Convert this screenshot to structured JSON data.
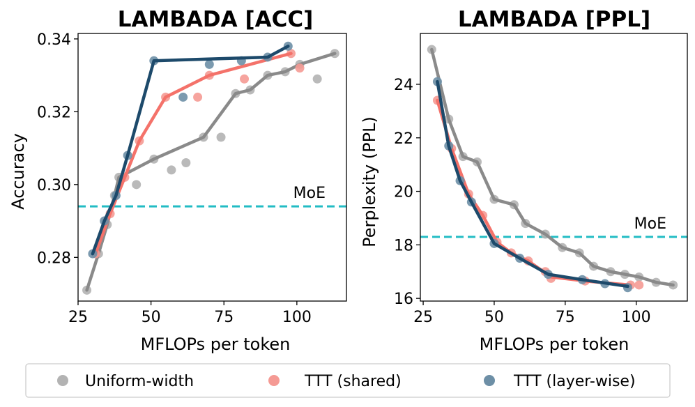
{
  "colors": {
    "uniform": "#8a8a8a",
    "shared": "#f4726a",
    "layerwise": "#1d4a6b",
    "moe": "#22bcc4"
  },
  "legend": {
    "items": [
      {
        "label": "Uniform-width",
        "color": "#b3b3b3"
      },
      {
        "label": "TTT (shared)",
        "color": "#f59a94"
      },
      {
        "label": "TTT (layer-wise)",
        "color": "#6d8fa6"
      }
    ]
  },
  "chart_data": [
    {
      "type": "line",
      "title": "LAMBADA [ACC]",
      "xlabel": "MFLOPs per token",
      "ylabel": "Accuracy",
      "xlim": [
        25,
        117
      ],
      "ylim": [
        0.268,
        0.3415
      ],
      "xticks": [
        25,
        50,
        75,
        100
      ],
      "yticks": [
        0.28,
        0.3,
        0.32,
        0.34
      ],
      "ytick_labels": [
        "0.28",
        "0.30",
        "0.32",
        "0.34"
      ],
      "hline": {
        "label": "MoE",
        "y": 0.294
      },
      "series": [
        {
          "name": "Uniform-width",
          "points": [
            [
              28,
              0.271
            ],
            [
              32,
              0.281
            ],
            [
              35,
              0.289
            ],
            [
              37.5,
              0.297
            ],
            [
              39,
              0.302
            ],
            [
              45,
              0.3
            ],
            [
              51,
              0.307
            ],
            [
              57,
              0.304
            ],
            [
              62,
              0.306
            ],
            [
              68,
              0.313
            ],
            [
              74,
              0.313
            ],
            [
              79,
              0.325
            ],
            [
              84,
              0.326
            ],
            [
              90,
              0.33
            ],
            [
              96,
              0.331
            ],
            [
              101,
              0.333
            ],
            [
              107,
              0.329
            ],
            [
              113,
              0.336
            ]
          ],
          "line": [
            [
              28,
              0.271
            ],
            [
              32,
              0.281
            ],
            [
              35,
              0.289
            ],
            [
              37.5,
              0.297
            ],
            [
              39,
              0.302
            ],
            [
              51,
              0.307
            ],
            [
              68,
              0.313
            ],
            [
              79,
              0.325
            ],
            [
              84,
              0.326
            ],
            [
              90,
              0.33
            ],
            [
              96,
              0.331
            ],
            [
              101,
              0.333
            ],
            [
              113,
              0.336
            ]
          ]
        },
        {
          "name": "TTT (shared)",
          "points": [
            [
              31,
              0.281
            ],
            [
              36,
              0.292
            ],
            [
              41,
              0.302
            ],
            [
              46,
              0.312
            ],
            [
              55,
              0.324
            ],
            [
              66,
              0.324
            ],
            [
              70,
              0.33
            ],
            [
              82,
              0.329
            ],
            [
              98,
              0.336
            ],
            [
              101,
              0.332
            ]
          ],
          "line": [
            [
              31,
              0.281
            ],
            [
              36,
              0.292
            ],
            [
              41,
              0.302
            ],
            [
              46,
              0.312
            ],
            [
              55,
              0.324
            ],
            [
              70,
              0.33
            ],
            [
              98,
              0.336
            ]
          ]
        },
        {
          "name": "TTT (layer-wise)",
          "points": [
            [
              30,
              0.281
            ],
            [
              34,
              0.29
            ],
            [
              38,
              0.297
            ],
            [
              42,
              0.308
            ],
            [
              51,
              0.334
            ],
            [
              61,
              0.324
            ],
            [
              70,
              0.333
            ],
            [
              81,
              0.334
            ],
            [
              90,
              0.335
            ],
            [
              97,
              0.338
            ]
          ],
          "line": [
            [
              30,
              0.281
            ],
            [
              34,
              0.29
            ],
            [
              38,
              0.297
            ],
            [
              42,
              0.308
            ],
            [
              51,
              0.334
            ],
            [
              90,
              0.335
            ],
            [
              97,
              0.338
            ]
          ]
        }
      ]
    },
    {
      "type": "line",
      "title": "LAMBADA [PPL]",
      "xlabel": "MFLOPs per token",
      "ylabel": "Perplexity (PPL)",
      "xlim": [
        24,
        118
      ],
      "ylim": [
        15.9,
        25.9
      ],
      "xticks": [
        25,
        50,
        75,
        100
      ],
      "yticks": [
        16,
        18,
        20,
        22,
        24
      ],
      "ytick_labels": [
        "16",
        "18",
        "20",
        "22",
        "24"
      ],
      "hline": {
        "label": "MoE",
        "y": 18.3
      },
      "series": [
        {
          "name": "Uniform-width",
          "points": [
            [
              28,
              25.3
            ],
            [
              34,
              22.7
            ],
            [
              39,
              21.3
            ],
            [
              44,
              21.1
            ],
            [
              50,
              19.7
            ],
            [
              57,
              19.5
            ],
            [
              61,
              18.8
            ],
            [
              68,
              18.4
            ],
            [
              74,
              17.9
            ],
            [
              80,
              17.7
            ],
            [
              85,
              17.2
            ],
            [
              91,
              17.0
            ],
            [
              96,
              16.9
            ],
            [
              101,
              16.8
            ],
            [
              107,
              16.6
            ],
            [
              113,
              16.5
            ]
          ],
          "line": [
            [
              28,
              25.3
            ],
            [
              34,
              22.7
            ],
            [
              39,
              21.3
            ],
            [
              44,
              21.1
            ],
            [
              50,
              19.7
            ],
            [
              57,
              19.5
            ],
            [
              61,
              18.8
            ],
            [
              68,
              18.4
            ],
            [
              74,
              17.9
            ],
            [
              80,
              17.7
            ],
            [
              85,
              17.2
            ],
            [
              91,
              17.0
            ],
            [
              96,
              16.9
            ],
            [
              101,
              16.8
            ],
            [
              107,
              16.6
            ],
            [
              113,
              16.5
            ]
          ]
        },
        {
          "name": "TTT (shared)",
          "points": [
            [
              30,
              23.4
            ],
            [
              35,
              21.6
            ],
            [
              41,
              19.9
            ],
            [
              46,
              19.1
            ],
            [
              51,
              18.1
            ],
            [
              56,
              17.7
            ],
            [
              62,
              17.4
            ],
            [
              68,
              17.0
            ],
            [
              70,
              16.75
            ],
            [
              82,
              16.65
            ],
            [
              98,
              16.5
            ],
            [
              101,
              16.5
            ]
          ],
          "line": [
            [
              30,
              23.4
            ],
            [
              35,
              21.6
            ],
            [
              41,
              19.9
            ],
            [
              46,
              19.1
            ],
            [
              51,
              18.1
            ],
            [
              56,
              17.7
            ],
            [
              62,
              17.4
            ],
            [
              70,
              16.8
            ],
            [
              82,
              16.65
            ],
            [
              98,
              16.5
            ]
          ]
        },
        {
          "name": "TTT (layer-wise)",
          "points": [
            [
              30,
              24.1
            ],
            [
              34,
              21.7
            ],
            [
              38,
              20.4
            ],
            [
              42,
              19.6
            ],
            [
              50,
              18.05
            ],
            [
              59,
              17.5
            ],
            [
              69,
              16.9
            ],
            [
              81,
              16.7
            ],
            [
              89,
              16.55
            ],
            [
              97,
              16.4
            ]
          ],
          "line": [
            [
              30,
              24.1
            ],
            [
              34,
              21.7
            ],
            [
              38,
              20.4
            ],
            [
              42,
              19.6
            ],
            [
              50,
              18.05
            ],
            [
              59,
              17.5
            ],
            [
              69,
              16.9
            ],
            [
              81,
              16.7
            ],
            [
              97,
              16.45
            ]
          ]
        }
      ]
    }
  ]
}
